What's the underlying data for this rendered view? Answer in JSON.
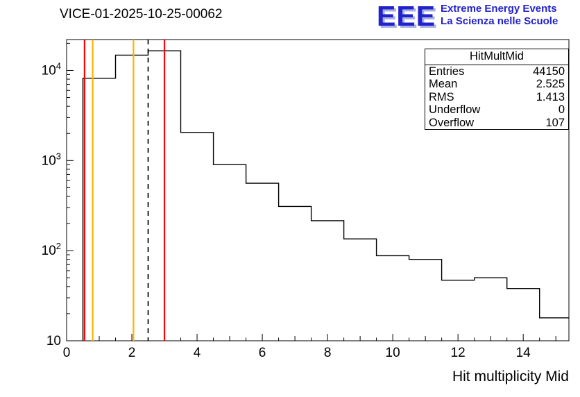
{
  "header": {
    "title": "VICE-01-2025-10-25-00062",
    "logo": {
      "acronym": "EEE",
      "line1": "Extreme Energy Events",
      "line2": "La Scienza nelle Scuole",
      "text_color": "#2222cc",
      "shadow_color": "#a8b2e0"
    }
  },
  "stats": {
    "title": "HitMultMid",
    "rows": [
      {
        "label": "Entries",
        "value": "44150"
      },
      {
        "label": "Mean",
        "value": "2.525"
      },
      {
        "label": "RMS",
        "value": "1.413"
      },
      {
        "label": "Underflow",
        "value": "0"
      },
      {
        "label": "Overflow",
        "value": "107"
      }
    ]
  },
  "chart_data": {
    "type": "bar",
    "subtype": "step-histogram",
    "title": "VICE-01-2025-10-25-00062",
    "xlabel": "Hit multiplicity Mid",
    "ylabel": "",
    "y_scale": "log",
    "xlim": [
      0,
      15.4
    ],
    "ylim": [
      10,
      22000
    ],
    "grid": false,
    "bin_edges": [
      0.5,
      1.5,
      2.5,
      3.5,
      4.5,
      5.5,
      6.5,
      7.5,
      8.5,
      9.5,
      10.5,
      11.5,
      12.5,
      13.5,
      14.5,
      15.5
    ],
    "counts": [
      8200,
      14800,
      16500,
      2050,
      900,
      560,
      310,
      215,
      135,
      88,
      80,
      47,
      50,
      38,
      18
    ],
    "x_major_ticks": [
      0,
      2,
      4,
      6,
      8,
      10,
      12,
      14
    ],
    "y_major_ticks": [
      10,
      100,
      1000,
      10000
    ],
    "line_color": "#000000",
    "marker_lines": [
      {
        "x": 0.55,
        "color": "#ff0000",
        "style": "solid",
        "name": "red-marker-left"
      },
      {
        "x": 0.8,
        "color": "#ffb300",
        "style": "solid",
        "name": "yellow-marker-left"
      },
      {
        "x": 2.05,
        "color": "#ffb300",
        "style": "solid",
        "name": "yellow-marker-right"
      },
      {
        "x": 2.5,
        "color": "#000000",
        "style": "dashed",
        "name": "mean-dashed-line"
      },
      {
        "x": 3.0,
        "color": "#ff0000",
        "style": "solid",
        "name": "red-marker-right"
      }
    ]
  }
}
